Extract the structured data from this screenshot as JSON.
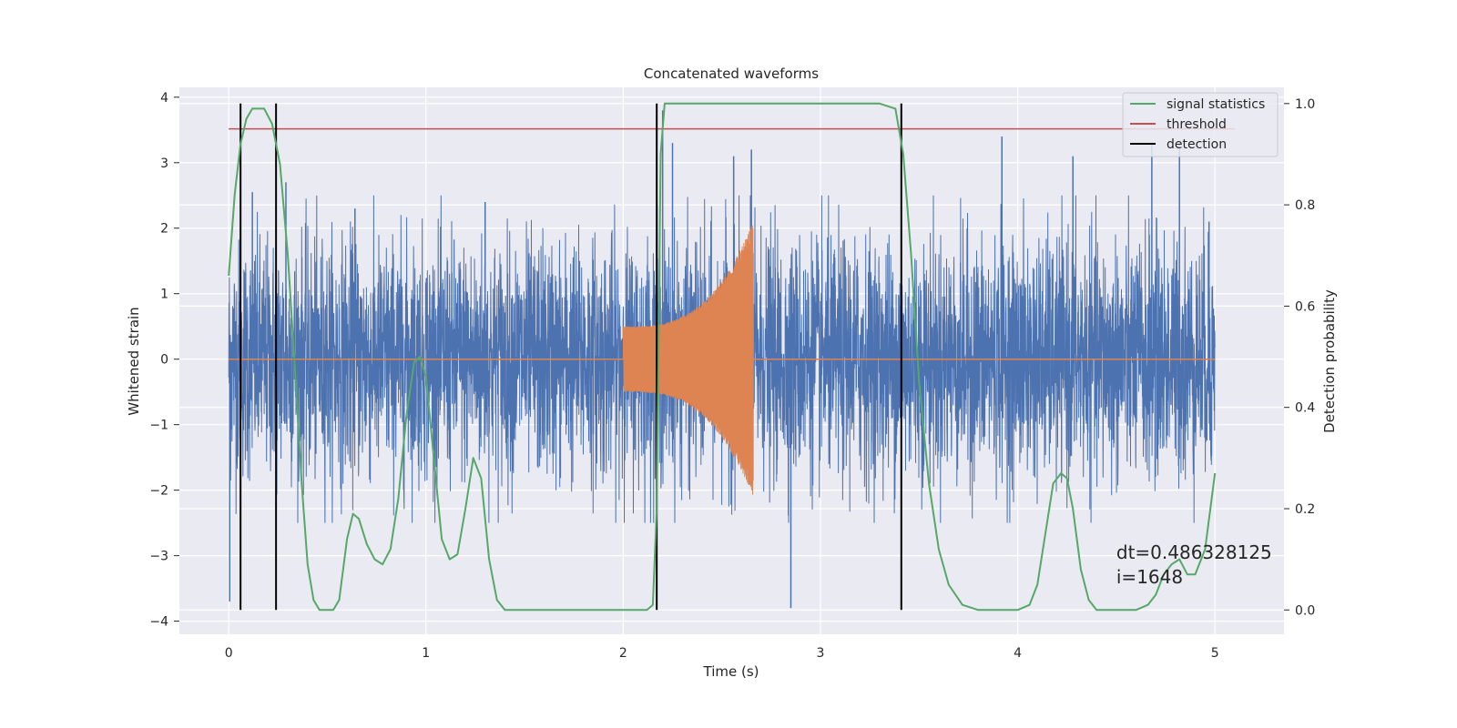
{
  "chart_data": {
    "type": "line",
    "title": "Concatenated waveforms",
    "xlabel": "Time (s)",
    "ylabel": "Whitened strain",
    "y2label": "Detection probability",
    "xlim": [
      -0.25,
      5.35
    ],
    "ylim": [
      -4.2,
      4.15
    ],
    "y2lim": [
      -0.048,
      1.032
    ],
    "xticks": [
      0,
      1,
      2,
      3,
      4,
      5
    ],
    "xtick_labels": [
      "0",
      "1",
      "2",
      "3",
      "4",
      "5"
    ],
    "yticks": [
      -4,
      -3,
      -2,
      -1,
      0,
      1,
      2,
      3,
      4
    ],
    "ytick_labels": [
      "−4",
      "−3",
      "−2",
      "−1",
      "0",
      "1",
      "2",
      "3",
      "4"
    ],
    "y2ticks": [
      0.0,
      0.2,
      0.4,
      0.6,
      0.8,
      1.0
    ],
    "y2tick_labels": [
      "0.0",
      "0.2",
      "0.4",
      "0.6",
      "0.8",
      "1.0"
    ],
    "grid": true,
    "legend_position": "top-right",
    "series": [
      {
        "key": "strain",
        "axis": "left",
        "color": "#4c72b0",
        "x_range": [
          0,
          5
        ],
        "envelope": {
          "typical": 0.9,
          "peak": 2.5
        },
        "extremes": [
          [
            0.005,
            -3.7
          ],
          [
            0.12,
            2.55
          ],
          [
            0.29,
            2.7
          ],
          [
            0.64,
            2.3
          ],
          [
            1.3,
            2.4
          ],
          [
            2.2,
            3.8
          ],
          [
            2.25,
            3.3
          ],
          [
            2.56,
            3.1
          ],
          [
            2.65,
            3.2
          ],
          [
            2.85,
            -3.8
          ],
          [
            3.92,
            3.4
          ],
          [
            4.28,
            3.1
          ],
          [
            4.68,
            3.3
          ],
          [
            4.82,
            3.3
          ],
          [
            4.97,
            2.1
          ]
        ]
      },
      {
        "key": "template",
        "axis": "left",
        "color": "#dd8452",
        "chirp": {
          "start": 2.0,
          "end": 2.66,
          "amp_start": 0.5,
          "amp_end": 2.1,
          "tail_to": 5.0
        }
      },
      {
        "key": "signal_statistics",
        "name": "signal statistics",
        "axis": "right",
        "color": "#55a868",
        "x": [
          0.0,
          0.03,
          0.06,
          0.09,
          0.12,
          0.18,
          0.22,
          0.26,
          0.3,
          0.34,
          0.37,
          0.4,
          0.43,
          0.46,
          0.5,
          0.53,
          0.56,
          0.6,
          0.63,
          0.66,
          0.7,
          0.74,
          0.78,
          0.82,
          0.86,
          0.9,
          0.94,
          0.97,
          1.0,
          1.04,
          1.08,
          1.12,
          1.16,
          1.2,
          1.24,
          1.28,
          1.32,
          1.36,
          1.4,
          1.6,
          2.0,
          2.12,
          2.15,
          2.17,
          2.19,
          2.21,
          2.25,
          3.3,
          3.38,
          3.42,
          3.46,
          3.5,
          3.55,
          3.6,
          3.65,
          3.72,
          3.8,
          3.9,
          4.0,
          4.06,
          4.1,
          4.14,
          4.18,
          4.22,
          4.25,
          4.28,
          4.32,
          4.36,
          4.4,
          4.5,
          4.6,
          4.66,
          4.7,
          4.74,
          4.78,
          4.82,
          4.86,
          4.9,
          4.95,
          5.0
        ],
        "y": [
          0.66,
          0.82,
          0.92,
          0.97,
          0.99,
          0.99,
          0.96,
          0.88,
          0.7,
          0.45,
          0.25,
          0.09,
          0.02,
          0.0,
          0.0,
          0.0,
          0.02,
          0.14,
          0.19,
          0.18,
          0.13,
          0.1,
          0.09,
          0.12,
          0.22,
          0.38,
          0.49,
          0.5,
          0.46,
          0.3,
          0.14,
          0.1,
          0.11,
          0.2,
          0.3,
          0.26,
          0.1,
          0.02,
          0.0,
          0.0,
          0.0,
          0.0,
          0.01,
          0.2,
          0.9,
          1.0,
          1.0,
          1.0,
          0.99,
          0.9,
          0.7,
          0.45,
          0.25,
          0.12,
          0.05,
          0.01,
          0.0,
          0.0,
          0.0,
          0.01,
          0.05,
          0.15,
          0.25,
          0.27,
          0.26,
          0.2,
          0.08,
          0.02,
          0.0,
          0.0,
          0.0,
          0.01,
          0.03,
          0.07,
          0.09,
          0.1,
          0.07,
          0.07,
          0.12,
          0.27
        ]
      },
      {
        "key": "threshold",
        "name": "threshold",
        "axis": "right",
        "color": "#c44e52",
        "x": [
          0,
          5.1
        ],
        "y": [
          0.95,
          0.95
        ]
      },
      {
        "key": "detection",
        "name": "detection",
        "axis": "right",
        "color": "#000000",
        "x": [
          0.06,
          0.24,
          2.17,
          3.41
        ],
        "y_range": [
          0.0,
          1.0
        ]
      }
    ],
    "annotation": {
      "x": 4.5,
      "y": -3.05,
      "lines": [
        "dt=0.486328125",
        " i=1648"
      ]
    }
  }
}
